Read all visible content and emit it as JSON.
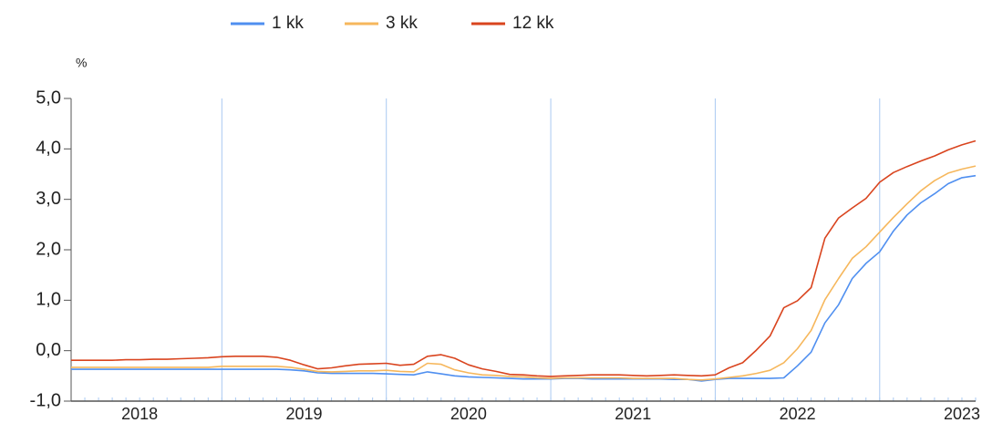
{
  "chart_data": {
    "type": "line",
    "y_unit_label": "%",
    "categories": [
      null,
      null,
      null,
      null,
      null,
      "2018",
      null,
      null,
      null,
      null,
      null,
      null,
      null,
      null,
      null,
      null,
      null,
      "2019",
      null,
      null,
      null,
      null,
      null,
      null,
      null,
      null,
      null,
      null,
      null,
      "2020",
      null,
      null,
      null,
      null,
      null,
      null,
      null,
      null,
      null,
      null,
      null,
      "2021",
      null,
      null,
      null,
      null,
      null,
      null,
      null,
      null,
      null,
      null,
      null,
      "2022",
      null,
      null,
      null,
      null,
      null,
      null,
      null,
      null,
      null,
      null,
      null,
      "2023",
      null
    ],
    "series": [
      {
        "name": "1 kk",
        "color": "#4f8ff0",
        "values": [
          -0.37,
          -0.37,
          -0.37,
          -0.37,
          -0.37,
          -0.37,
          -0.37,
          -0.37,
          -0.37,
          -0.37,
          -0.37,
          -0.37,
          -0.37,
          -0.37,
          -0.37,
          -0.37,
          -0.38,
          -0.4,
          -0.44,
          -0.45,
          -0.45,
          -0.45,
          -0.45,
          -0.46,
          -0.47,
          -0.48,
          -0.42,
          -0.46,
          -0.5,
          -0.52,
          -0.53,
          -0.54,
          -0.55,
          -0.56,
          -0.56,
          -0.56,
          -0.55,
          -0.55,
          -0.56,
          -0.56,
          -0.56,
          -0.56,
          -0.56,
          -0.56,
          -0.57,
          -0.57,
          -0.6,
          -0.57,
          -0.55,
          -0.55,
          -0.55,
          -0.55,
          -0.54,
          -0.3,
          -0.03,
          0.55,
          0.91,
          1.43,
          1.73,
          1.96,
          2.37,
          2.69,
          2.93,
          3.11,
          3.31,
          3.43,
          3.47
        ]
      },
      {
        "name": "3 kk",
        "color": "#f6b75c",
        "values": [
          -0.33,
          -0.33,
          -0.33,
          -0.33,
          -0.33,
          -0.33,
          -0.33,
          -0.33,
          -0.33,
          -0.33,
          -0.33,
          -0.31,
          -0.31,
          -0.31,
          -0.31,
          -0.31,
          -0.33,
          -0.37,
          -0.41,
          -0.42,
          -0.41,
          -0.4,
          -0.4,
          -0.39,
          -0.41,
          -0.42,
          -0.25,
          -0.27,
          -0.38,
          -0.44,
          -0.48,
          -0.49,
          -0.51,
          -0.52,
          -0.54,
          -0.55,
          -0.54,
          -0.54,
          -0.54,
          -0.54,
          -0.54,
          -0.55,
          -0.55,
          -0.55,
          -0.55,
          -0.57,
          -0.58,
          -0.56,
          -0.53,
          -0.5,
          -0.45,
          -0.39,
          -0.24,
          0.04,
          0.4,
          1.01,
          1.43,
          1.83,
          2.06,
          2.35,
          2.64,
          2.91,
          3.17,
          3.37,
          3.52,
          3.6,
          3.66
        ]
      },
      {
        "name": "12 kk",
        "color": "#d9441e",
        "values": [
          -0.19,
          -0.19,
          -0.19,
          -0.19,
          -0.18,
          -0.18,
          -0.17,
          -0.17,
          -0.16,
          -0.15,
          -0.14,
          -0.12,
          -0.11,
          -0.11,
          -0.11,
          -0.13,
          -0.19,
          -0.28,
          -0.36,
          -0.34,
          -0.3,
          -0.27,
          -0.26,
          -0.25,
          -0.29,
          -0.27,
          -0.11,
          -0.08,
          -0.15,
          -0.28,
          -0.36,
          -0.41,
          -0.47,
          -0.48,
          -0.5,
          -0.51,
          -0.5,
          -0.49,
          -0.48,
          -0.48,
          -0.48,
          -0.49,
          -0.5,
          -0.49,
          -0.48,
          -0.49,
          -0.5,
          -0.48,
          -0.34,
          -0.24,
          0.01,
          0.29,
          0.85,
          0.99,
          1.25,
          2.23,
          2.63,
          2.83,
          3.02,
          3.34,
          3.53,
          3.65,
          3.76,
          3.86,
          3.98,
          4.08,
          4.16
        ]
      }
    ],
    "ylim": [
      -1,
      5
    ],
    "yticks": [
      {
        "value": -1,
        "label": "-1,0"
      },
      {
        "value": 0,
        "label": "0,0"
      },
      {
        "value": 1,
        "label": "1,0"
      },
      {
        "value": 2,
        "label": "2,0"
      },
      {
        "value": 3,
        "label": "3,0"
      },
      {
        "value": 4,
        "label": "4,0"
      },
      {
        "value": 5,
        "label": "5,0"
      }
    ],
    "legend": "top"
  }
}
